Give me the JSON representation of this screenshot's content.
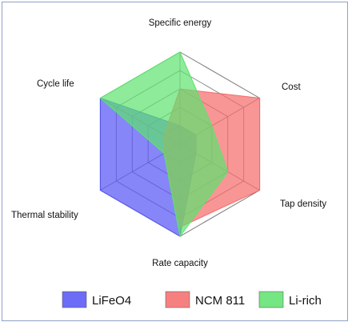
{
  "chart_data": {
    "type": "radar",
    "axes": [
      "Specific energy",
      "Cost",
      "Tap density",
      "Rate capacity",
      "Thermal stability",
      "Cycle life"
    ],
    "scale_max": 5,
    "rings": 5,
    "series": [
      {
        "name": "LiFeO4",
        "values": [
          1,
          1,
          1,
          5,
          5,
          5
        ],
        "color": "#5353f5"
      },
      {
        "name": "NCM 811",
        "values": [
          3,
          5,
          5,
          4.5,
          1,
          1
        ],
        "color": "#f56a6a"
      },
      {
        "name": "Li-rich",
        "values": [
          5,
          2,
          3,
          5,
          1,
          5
        ],
        "color": "#5ce26e"
      }
    ]
  }
}
